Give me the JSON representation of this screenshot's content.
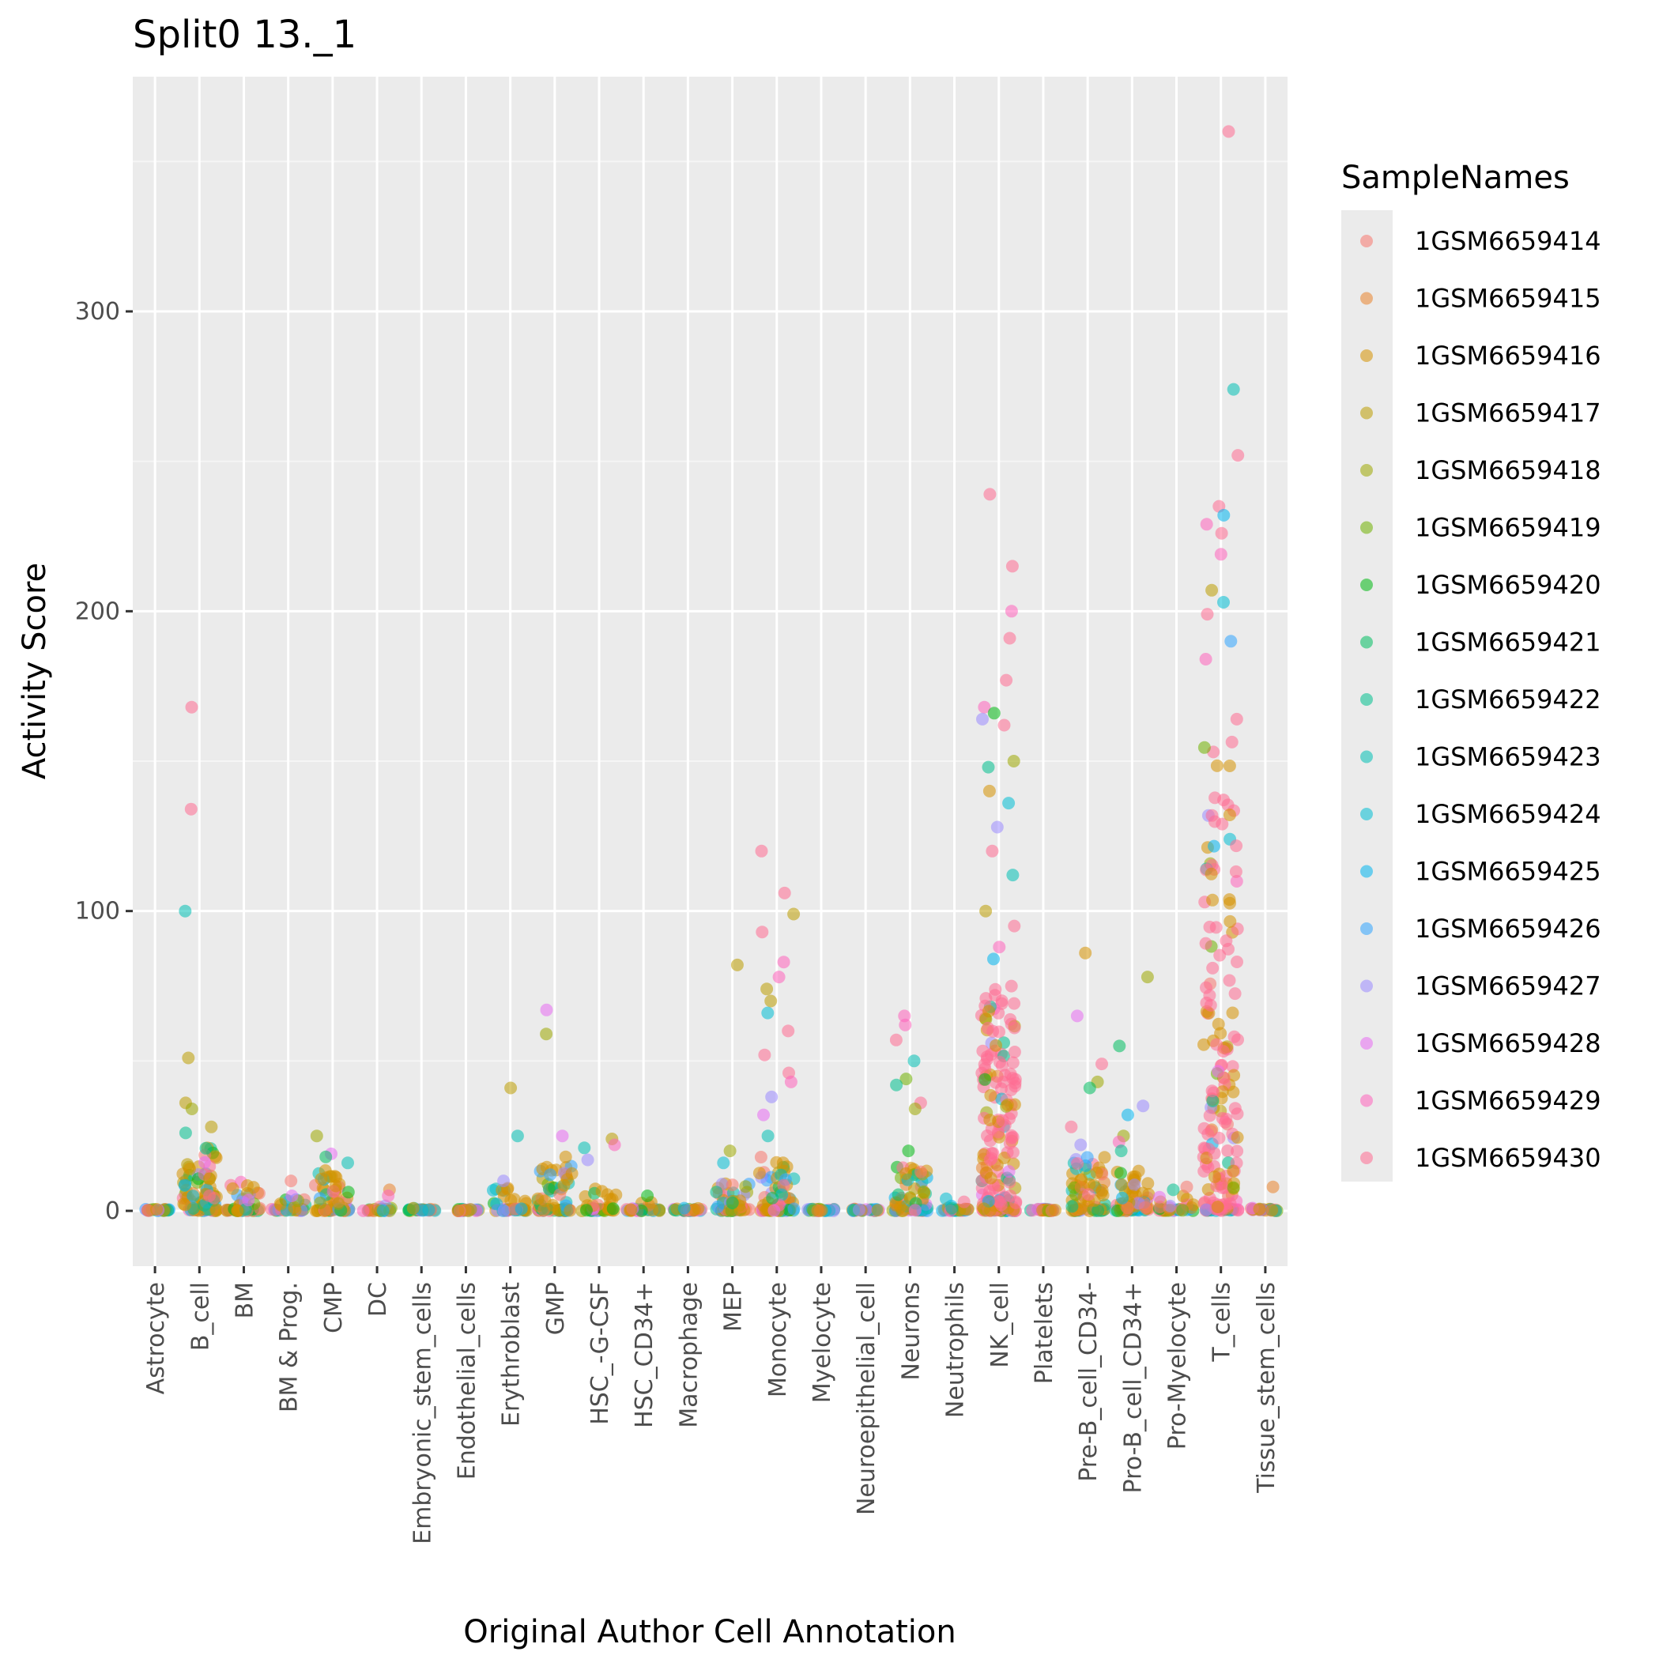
{
  "chart_data": {
    "type": "scatter",
    "title": "Split0 13._1",
    "xlabel": "Original Author Cell Annotation",
    "ylabel": "Activity Score",
    "ylim": [
      -18,
      378
    ],
    "yticks": [
      0,
      100,
      200,
      300
    ],
    "grid": true,
    "legend_placement": "right",
    "legend_title": "SampleNames",
    "categories": [
      "Astrocyte",
      "B_cell",
      "BM",
      "BM & Prog.",
      "CMP",
      "DC",
      "Embryonic_stem_cells",
      "Endothelial_cells",
      "Erythroblast",
      "GMP",
      "HSC_-G-CSF",
      "HSC_CD34+",
      "Macrophage",
      "MEP",
      "Monocyte",
      "Myelocyte",
      "Neuroepithelial_cell",
      "Neurons",
      "Neutrophils",
      "NK_cell",
      "Platelets",
      "Pre-B_cell_CD34-",
      "Pro-B_cell_CD34+",
      "Pro-Myelocyte",
      "T_cells",
      "Tissue_stem_cells"
    ],
    "series": [
      {
        "name": "1GSM6659414",
        "color": "#F8766D"
      },
      {
        "name": "1GSM6659415",
        "color": "#E9842C"
      },
      {
        "name": "1GSM6659416",
        "color": "#D69100"
      },
      {
        "name": "1GSM6659417",
        "color": "#BC9D00"
      },
      {
        "name": "1GSM6659418",
        "color": "#9CA700"
      },
      {
        "name": "1GSM6659419",
        "color": "#6FB000"
      },
      {
        "name": "1GSM6659420",
        "color": "#00B813"
      },
      {
        "name": "1GSM6659421",
        "color": "#00BD61"
      },
      {
        "name": "1GSM6659422",
        "color": "#00C08E"
      },
      {
        "name": "1GSM6659423",
        "color": "#00C0B4"
      },
      {
        "name": "1GSM6659424",
        "color": "#00BDD4"
      },
      {
        "name": "1GSM6659425",
        "color": "#00B5EE"
      },
      {
        "name": "1GSM6659426",
        "color": "#2FA4FF"
      },
      {
        "name": "1GSM6659427",
        "color": "#9A8AFF"
      },
      {
        "name": "1GSM6659428",
        "color": "#E76BF3"
      },
      {
        "name": "1GSM6659429",
        "color": "#FF62BC"
      },
      {
        "name": "1GSM6659430",
        "color": "#FF6C91"
      }
    ],
    "category_stats": [
      {
        "category": "Astrocyte",
        "bulk_max": 1,
        "outliers": []
      },
      {
        "category": "B_cell",
        "bulk_max": 22,
        "outliers": [
          [
            168,
            16
          ],
          [
            134,
            16
          ],
          [
            100,
            9
          ],
          [
            51,
            3
          ],
          [
            36,
            3
          ],
          [
            34,
            4
          ],
          [
            28,
            3
          ],
          [
            26,
            8
          ]
        ]
      },
      {
        "category": "BM",
        "bulk_max": 10,
        "outliers": []
      },
      {
        "category": "BM & Prog.",
        "bulk_max": 4,
        "outliers": [
          [
            10,
            0
          ],
          [
            5,
            14
          ]
        ]
      },
      {
        "category": "CMP",
        "bulk_max": 14,
        "outliers": [
          [
            25,
            4
          ],
          [
            19,
            14
          ],
          [
            18,
            7
          ],
          [
            16,
            9
          ]
        ]
      },
      {
        "category": "DC",
        "bulk_max": 2,
        "outliers": [
          [
            7,
            1
          ],
          [
            5,
            15
          ]
        ]
      },
      {
        "category": "Embryonic_stem_cells",
        "bulk_max": 1,
        "outliers": []
      },
      {
        "category": "Endothelial_cells",
        "bulk_max": 0.5,
        "outliers": []
      },
      {
        "category": "Erythroblast",
        "bulk_max": 8,
        "outliers": [
          [
            41,
            3
          ],
          [
            25,
            9
          ],
          [
            10,
            13
          ]
        ]
      },
      {
        "category": "GMP",
        "bulk_max": 15,
        "outliers": [
          [
            67,
            14
          ],
          [
            59,
            4
          ],
          [
            25,
            14
          ],
          [
            18,
            2
          ]
        ]
      },
      {
        "category": "HSC_-G-CSF",
        "bulk_max": 8,
        "outliers": [
          [
            24,
            3
          ],
          [
            22,
            15
          ],
          [
            21,
            9
          ],
          [
            17,
            13
          ]
        ]
      },
      {
        "category": "HSC_CD34+",
        "bulk_max": 3,
        "outliers": [
          [
            5,
            6
          ]
        ]
      },
      {
        "category": "Macrophage",
        "bulk_max": 1,
        "outliers": []
      },
      {
        "category": "MEP",
        "bulk_max": 10,
        "outliers": [
          [
            82,
            3
          ],
          [
            20,
            4
          ],
          [
            16,
            10
          ]
        ]
      },
      {
        "category": "Monocyte",
        "bulk_max": 18,
        "outliers": [
          [
            120,
            16
          ],
          [
            106,
            16
          ],
          [
            99,
            3
          ],
          [
            93,
            16
          ],
          [
            83,
            15
          ],
          [
            78,
            15
          ],
          [
            74,
            3
          ],
          [
            70,
            3
          ],
          [
            66,
            10
          ],
          [
            60,
            16
          ],
          [
            52,
            16
          ],
          [
            46,
            16
          ],
          [
            43,
            15
          ],
          [
            38,
            13
          ],
          [
            32,
            14
          ],
          [
            25,
            9
          ]
        ]
      },
      {
        "category": "Myelocyte",
        "bulk_max": 0.5,
        "outliers": []
      },
      {
        "category": "Neuroepithelial_cell",
        "bulk_max": 0.5,
        "outliers": []
      },
      {
        "category": "Neurons",
        "bulk_max": 15,
        "outliers": [
          [
            65,
            15
          ],
          [
            62,
            15
          ],
          [
            57,
            16
          ],
          [
            50,
            9
          ],
          [
            44,
            5
          ],
          [
            42,
            8
          ],
          [
            36,
            16
          ],
          [
            34,
            4
          ],
          [
            20,
            6
          ]
        ]
      },
      {
        "category": "Neutrophils",
        "bulk_max": 2,
        "outliers": [
          [
            4,
            10
          ],
          [
            3,
            16
          ]
        ]
      },
      {
        "category": "NK_cell",
        "bulk_max": 75,
        "outliers": [
          [
            239,
            16
          ],
          [
            215,
            16
          ],
          [
            200,
            15
          ],
          [
            191,
            16
          ],
          [
            177,
            16
          ],
          [
            168,
            15
          ],
          [
            166,
            6
          ],
          [
            164,
            13
          ],
          [
            162,
            16
          ],
          [
            150,
            4
          ],
          [
            148,
            8
          ],
          [
            140,
            2
          ],
          [
            136,
            10
          ],
          [
            128,
            13
          ],
          [
            120,
            16
          ],
          [
            112,
            9
          ],
          [
            100,
            3
          ],
          [
            95,
            16
          ],
          [
            88,
            15
          ],
          [
            84,
            11
          ]
        ]
      },
      {
        "category": "Platelets",
        "bulk_max": 0.5,
        "outliers": []
      },
      {
        "category": "Pre-B_cell_CD34-",
        "bulk_max": 18,
        "outliers": [
          [
            86,
            2
          ],
          [
            65,
            14
          ],
          [
            49,
            16
          ],
          [
            43,
            4
          ],
          [
            41,
            7
          ],
          [
            28,
            16
          ],
          [
            22,
            13
          ]
        ]
      },
      {
        "category": "Pro-B_cell_CD34+",
        "bulk_max": 15,
        "outliers": [
          [
            78,
            4
          ],
          [
            55,
            7
          ],
          [
            35,
            13
          ],
          [
            32,
            11
          ],
          [
            25,
            4
          ],
          [
            23,
            15
          ],
          [
            20,
            8
          ]
        ]
      },
      {
        "category": "Pro-Myelocyte",
        "bulk_max": 5,
        "outliers": [
          [
            8,
            0
          ],
          [
            7,
            8
          ]
        ]
      },
      {
        "category": "T_cells",
        "bulk_max": 165,
        "outliers": [
          [
            360,
            16
          ],
          [
            274,
            9
          ],
          [
            252,
            16
          ],
          [
            235,
            16
          ],
          [
            232,
            11
          ],
          [
            229,
            15
          ],
          [
            226,
            16
          ],
          [
            219,
            15
          ],
          [
            207,
            3
          ],
          [
            203,
            10
          ],
          [
            199,
            16
          ],
          [
            190,
            12
          ],
          [
            184,
            15
          ]
        ]
      },
      {
        "category": "Tissue_stem_cells",
        "bulk_max": 1,
        "outliers": [
          [
            8,
            1
          ]
        ]
      }
    ]
  }
}
